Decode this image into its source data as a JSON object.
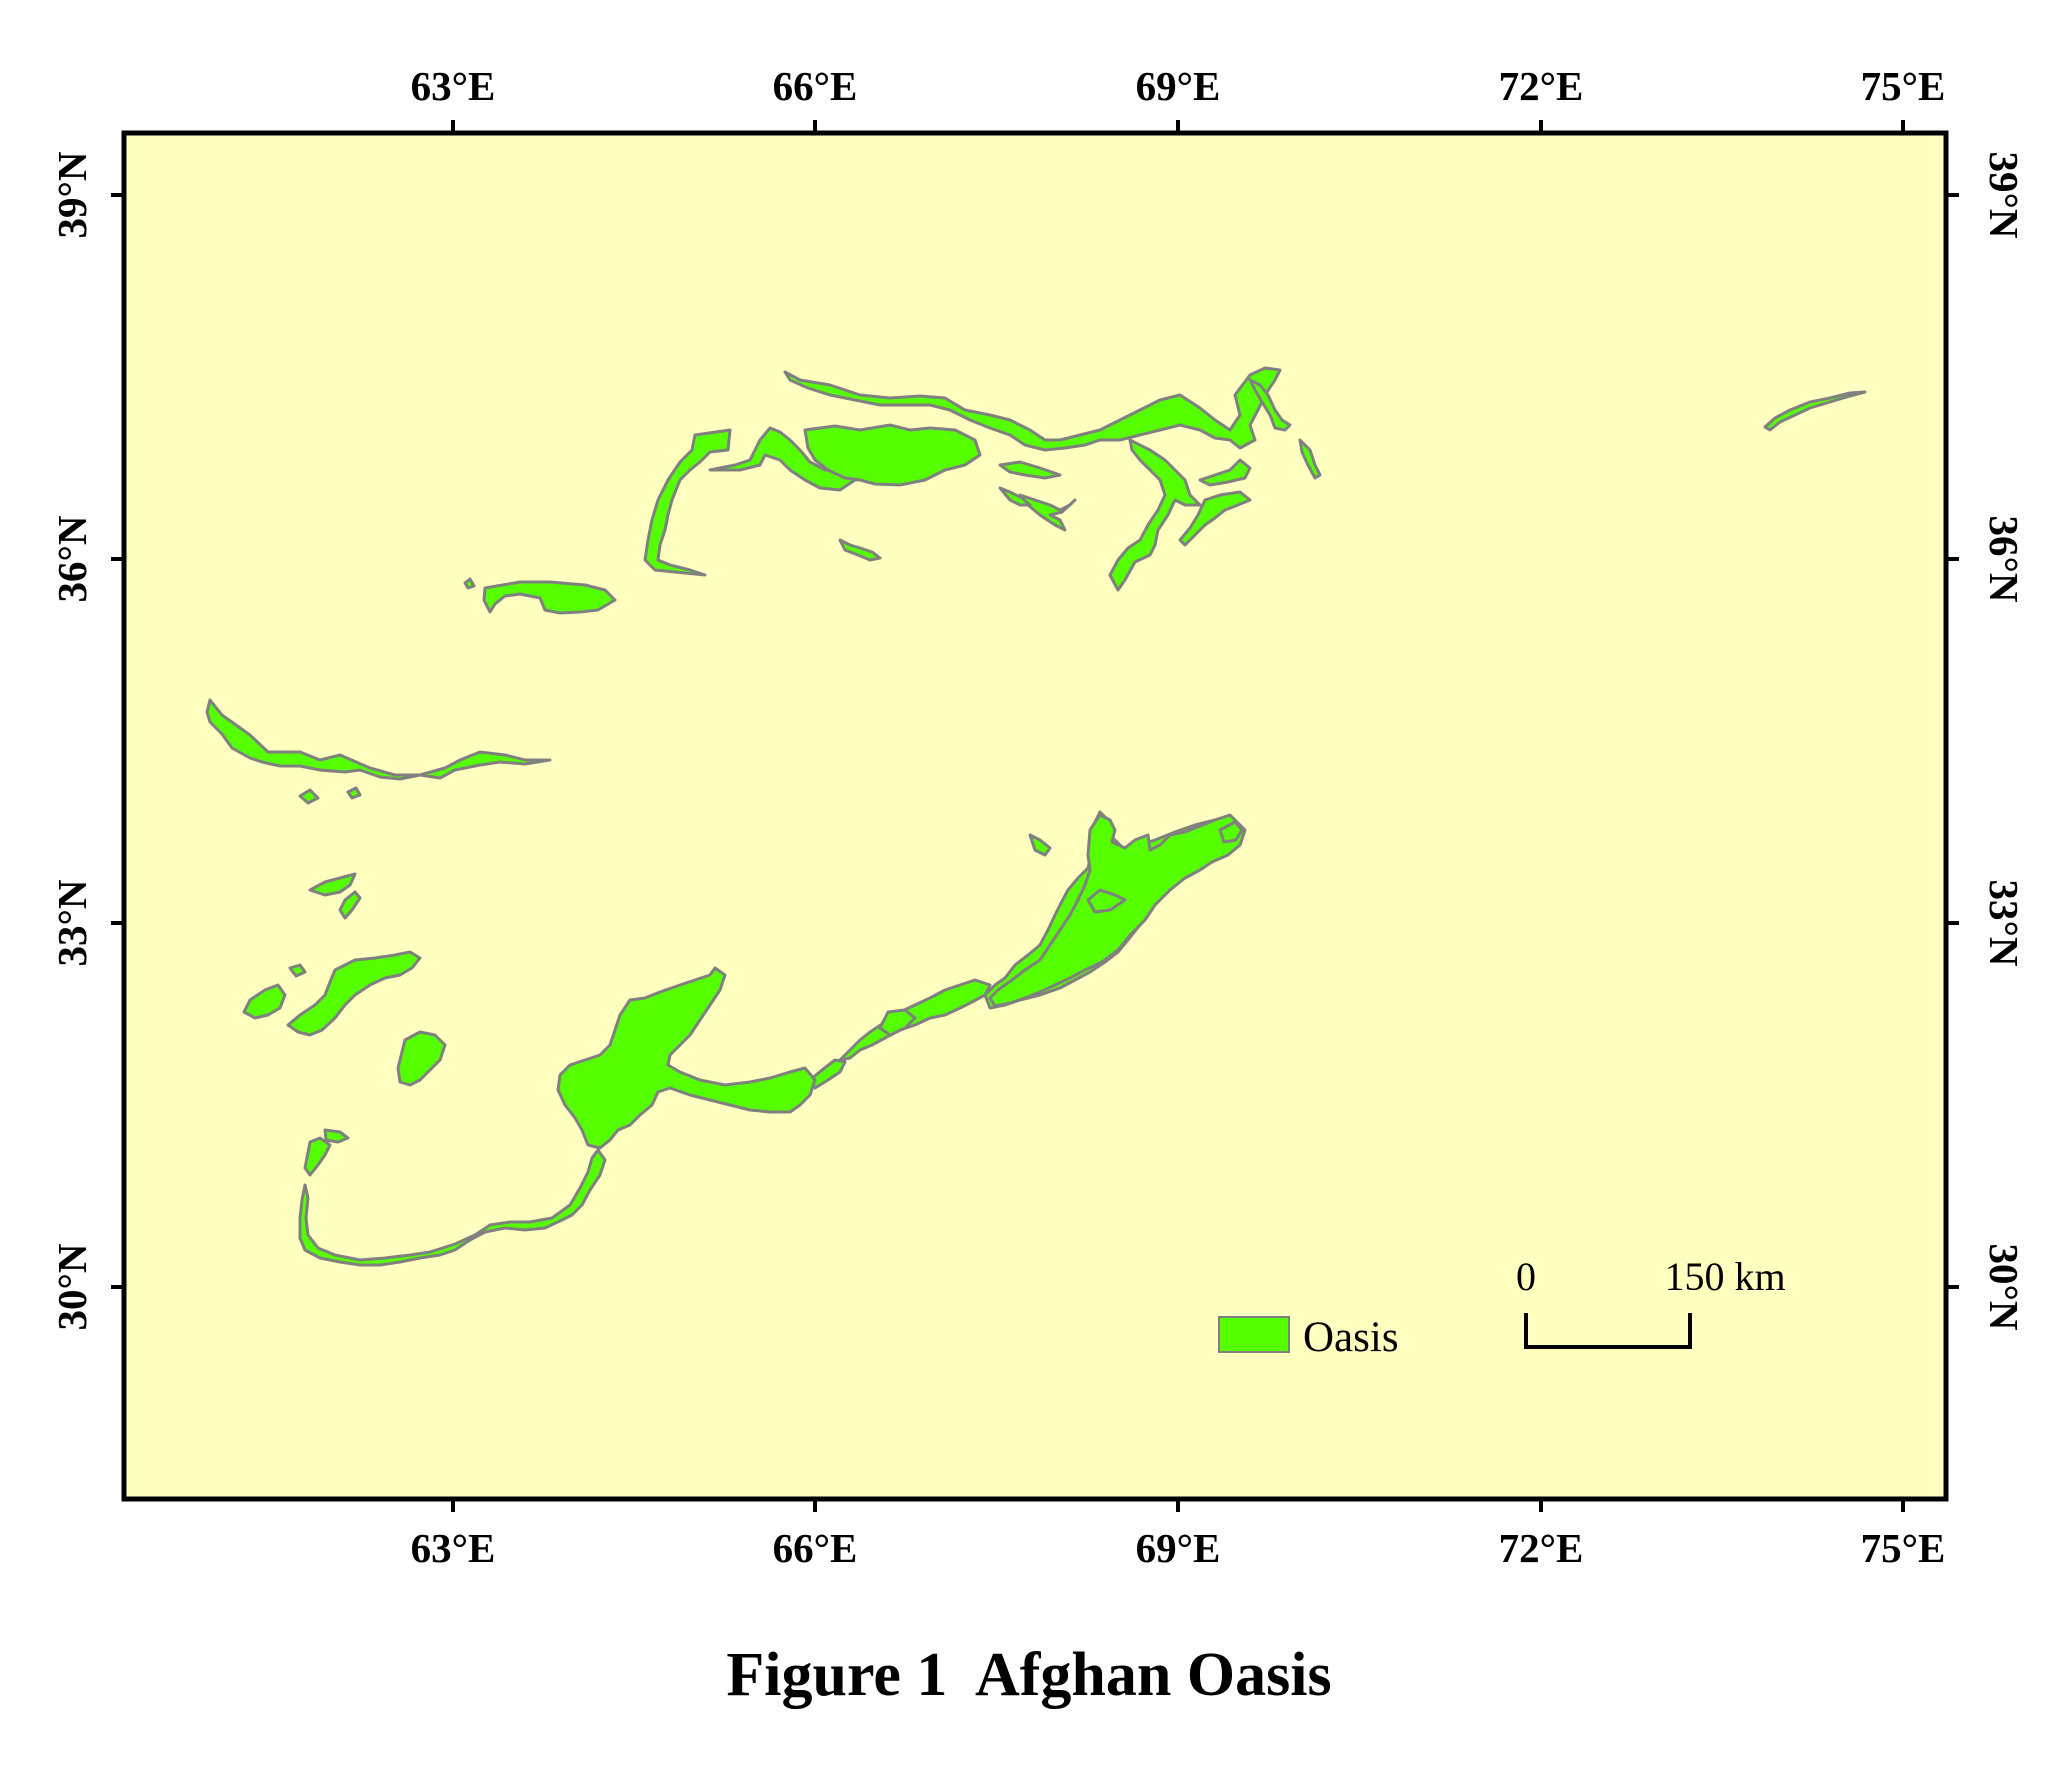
{
  "figure": {
    "caption": "Figure 1  Afghan Oasis"
  },
  "map": {
    "background_color": "#ffffc0",
    "oasis_color": "#55ff00",
    "oasis_outline_color": "#808080",
    "frame_color": "#000000",
    "longitude_ticks": [
      "63°E",
      "66°E",
      "69°E",
      "72°E",
      "75°E"
    ],
    "latitude_ticks": [
      "39°N",
      "36°N",
      "33°N",
      "30°N"
    ]
  },
  "legend": {
    "label": "Oasis"
  },
  "scale_bar": {
    "start_label": "0",
    "end_label": "150 km"
  }
}
